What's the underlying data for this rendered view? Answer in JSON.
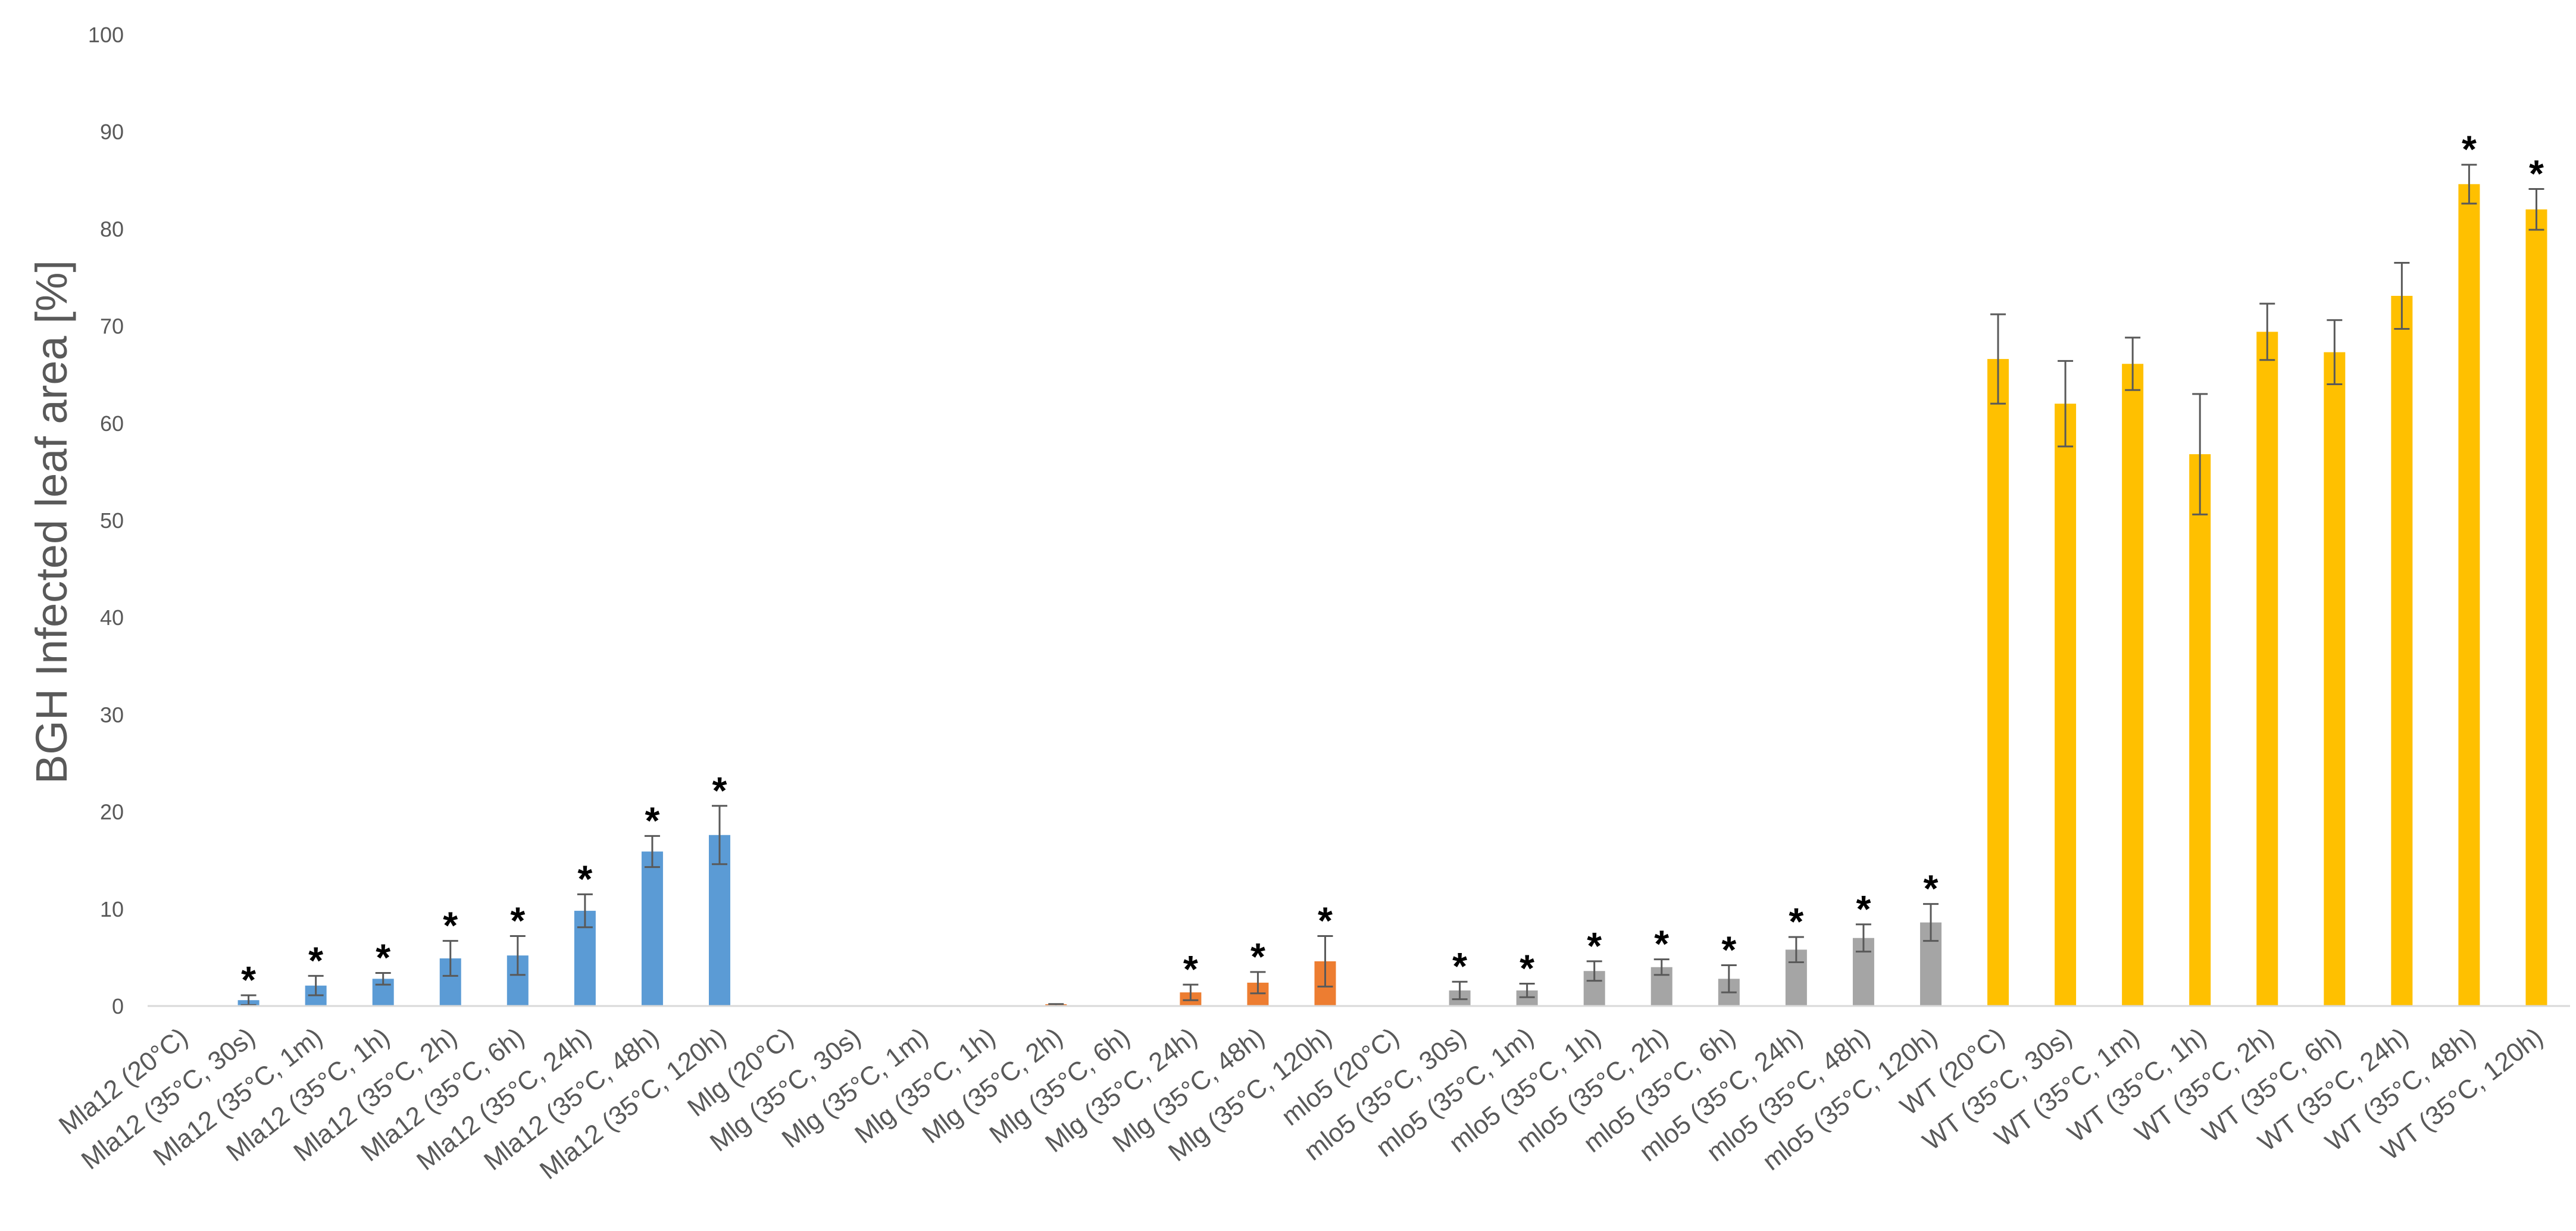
{
  "chart_data": {
    "type": "bar",
    "title": "",
    "xlabel": "",
    "ylabel": "BGH Infected leaf area [%]",
    "ylim": [
      0,
      100
    ],
    "yticks": [
      0,
      10,
      20,
      30,
      40,
      50,
      60,
      70,
      80,
      90,
      100
    ],
    "grid": false,
    "legend": "none",
    "significance_marker": "*",
    "colors": {
      "Mla12": "#5b9bd5",
      "Mlg": "#ed7d31",
      "mlo5": "#a5a5a5",
      "WT": "#ffc000",
      "error_bar": "#595959",
      "axis": "#d9d9d9",
      "tick_text": "#595959",
      "label_text": "#595959"
    },
    "categories": [
      "Mla12 (20°C)",
      "Mla12 (35°C, 30s)",
      "Mla12 (35°C, 1m)",
      "Mla12 (35°C, 1h)",
      "Mla12 (35°C, 2h)",
      "Mla12 (35°C, 6h)",
      "Mla12 (35°C, 24h)",
      "Mla12 (35°C, 48h)",
      "Mla12 (35°C, 120h)",
      "Mlg (20°C)",
      "Mlg (35°C, 30s)",
      "Mlg (35°C, 1m)",
      "Mlg (35°C, 1h)",
      "Mlg (35°C, 2h)",
      "Mlg (35°C, 6h)",
      "Mlg (35°C, 24h)",
      "Mlg (35°C, 48h)",
      "Mlg (35°C, 120h)",
      "mlo5 (20°C)",
      "mlo5 (35°C, 30s)",
      "mlo5 (35°C, 1m)",
      "mlo5 (35°C, 1h)",
      "mlo5 (35°C, 2h)",
      "mlo5 (35°C, 6h)",
      "mlo5 (35°C, 24h)",
      "mlo5 (35°C, 48h)",
      "mlo5 (35°C, 120h)",
      "WT (20°C)",
      "WT (35°C, 30s)",
      "WT (35°C, 1m)",
      "WT (35°C, 1h)",
      "WT (35°C, 2h)",
      "WT (35°C, 6h)",
      "WT (35°C, 24h)",
      "WT (35°C, 48h)",
      "WT (35°C, 120h)"
    ],
    "groups": [
      "Mla12",
      "Mla12",
      "Mla12",
      "Mla12",
      "Mla12",
      "Mla12",
      "Mla12",
      "Mla12",
      "Mla12",
      "Mlg",
      "Mlg",
      "Mlg",
      "Mlg",
      "Mlg",
      "Mlg",
      "Mlg",
      "Mlg",
      "Mlg",
      "mlo5",
      "mlo5",
      "mlo5",
      "mlo5",
      "mlo5",
      "mlo5",
      "mlo5",
      "mlo5",
      "mlo5",
      "WT",
      "WT",
      "WT",
      "WT",
      "WT",
      "WT",
      "WT",
      "WT",
      "WT"
    ],
    "values": [
      0,
      0.6,
      2.1,
      2.8,
      4.9,
      5.2,
      9.8,
      15.9,
      17.6,
      0,
      0,
      0,
      0,
      0.1,
      0,
      1.4,
      2.4,
      4.6,
      0,
      1.6,
      1.6,
      3.6,
      4.0,
      2.8,
      5.8,
      7.0,
      8.6,
      66.6,
      62.0,
      66.1,
      56.8,
      69.4,
      67.3,
      73.1,
      84.6,
      82.0
    ],
    "errors": [
      0,
      0.5,
      1.0,
      0.6,
      1.8,
      2.0,
      1.7,
      1.6,
      3.0,
      0,
      0,
      0,
      0,
      0.1,
      0,
      0.8,
      1.1,
      2.6,
      0,
      0.9,
      0.7,
      1.0,
      0.8,
      1.4,
      1.3,
      1.4,
      1.9,
      4.6,
      4.4,
      2.7,
      6.2,
      2.9,
      3.3,
      3.4,
      2.0,
      2.1
    ],
    "significant": [
      false,
      true,
      true,
      true,
      true,
      true,
      true,
      true,
      true,
      false,
      false,
      false,
      false,
      false,
      false,
      true,
      true,
      true,
      false,
      true,
      true,
      true,
      true,
      true,
      true,
      true,
      true,
      false,
      false,
      false,
      false,
      false,
      false,
      false,
      true,
      true
    ]
  }
}
